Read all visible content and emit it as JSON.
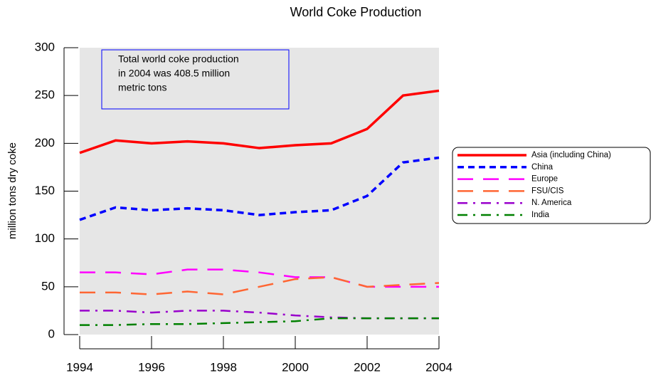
{
  "chart_data": {
    "type": "line",
    "title": "World Coke Production",
    "ylabel": "million tons dry coke",
    "x": [
      1994,
      1995,
      1996,
      1997,
      1998,
      1999,
      2000,
      2001,
      2002,
      2003,
      2004
    ],
    "xlim": [
      1994,
      2004
    ],
    "xticks": [
      1994,
      1996,
      1998,
      2000,
      2002,
      2004
    ],
    "ylim": [
      0,
      300
    ],
    "yticks": [
      0,
      50,
      100,
      150,
      200,
      250,
      300
    ],
    "annotation": [
      "Total world coke production",
      "in 2004 was 408.5 million",
      "metric tons"
    ],
    "legend": "right",
    "series": [
      {
        "name": "Asia (including China)",
        "color": "#ff0000",
        "linestyle": "solid",
        "values": [
          190,
          203,
          200,
          202,
          200,
          195,
          198,
          200,
          215,
          250,
          255
        ]
      },
      {
        "name": "China",
        "color": "#0000ff",
        "linestyle": "dashed",
        "values": [
          120,
          133,
          130,
          132,
          130,
          125,
          128,
          130,
          145,
          180,
          185
        ]
      },
      {
        "name": "Europe",
        "color": "#ff00ff",
        "linestyle": "longdash",
        "values": [
          65,
          65,
          63,
          68,
          68,
          65,
          60,
          60,
          50,
          50,
          50
        ]
      },
      {
        "name": "FSU/CIS",
        "color": "#ff6633",
        "linestyle": "longdash",
        "values": [
          44,
          44,
          42,
          45,
          42,
          50,
          58,
          60,
          50,
          52,
          54
        ]
      },
      {
        "name": "N. America",
        "color": "#9900cc",
        "linestyle": "dashdot",
        "values": [
          25,
          25,
          23,
          25,
          25,
          23,
          20,
          18,
          17,
          17,
          17
        ]
      },
      {
        "name": "India",
        "color": "#008000",
        "linestyle": "dashdot",
        "values": [
          10,
          10,
          11,
          11,
          12,
          13,
          14,
          17,
          17,
          17,
          17
        ]
      }
    ]
  }
}
